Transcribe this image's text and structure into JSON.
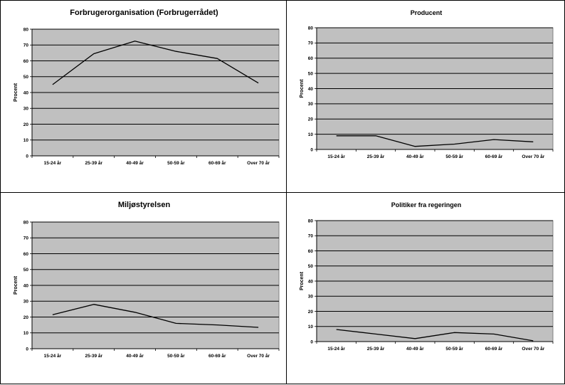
{
  "chart_data": [
    {
      "type": "line",
      "title": "Forbrugerorganisation (Forbrugerrådet)",
      "ylabel": "Procent",
      "xlabel": "",
      "categories": [
        "15-24 år",
        "25-39 år",
        "40-49 år",
        "50-59 år",
        "60-69 år",
        "Over 70 år"
      ],
      "values": [
        45,
        64.5,
        72.5,
        66,
        61.5,
        46
      ],
      "ylim": [
        0,
        80
      ],
      "yticks": [
        "0",
        "10",
        "20",
        "30",
        "40",
        "50",
        "60",
        "70",
        "80"
      ],
      "grid": true,
      "plot_color": "#c0c0c0",
      "line_color": "#000000"
    },
    {
      "type": "line",
      "title": "Producent",
      "ylabel": "Procent",
      "xlabel": "",
      "categories": [
        "15-24 år",
        "25-39 år",
        "40-49 år",
        "50-59 år",
        "60-69 år",
        "Over 70 år"
      ],
      "values": [
        9,
        9,
        2,
        3.5,
        6.5,
        5
      ],
      "ylim": [
        0,
        80
      ],
      "yticks": [
        "0",
        "10",
        "20",
        "30",
        "40",
        "50",
        "60",
        "70",
        "80"
      ],
      "grid": true,
      "plot_color": "#c0c0c0",
      "line_color": "#000000"
    },
    {
      "type": "line",
      "title": "Miljøstyrelsen",
      "ylabel": "Procent",
      "xlabel": "",
      "categories": [
        "15-24 år",
        "25-39 år",
        "40-49 år",
        "50-59 år",
        "60-69 år",
        "Over 70 år"
      ],
      "values": [
        21.5,
        28,
        23,
        16,
        15,
        13.5
      ],
      "ylim": [
        0,
        80
      ],
      "yticks": [
        "0",
        "10",
        "20",
        "30",
        "40",
        "50",
        "60",
        "70",
        "80"
      ],
      "grid": true,
      "plot_color": "#c0c0c0",
      "line_color": "#000000"
    },
    {
      "type": "line",
      "title": "Politiker fra regeringen",
      "ylabel": "Procent",
      "xlabel": "",
      "categories": [
        "15-24 år",
        "25-39 år",
        "40-49 år",
        "50-59 år",
        "60-69 år",
        "Over 70 år"
      ],
      "values": [
        8,
        5,
        2,
        6,
        5,
        0.5
      ],
      "ylim": [
        0,
        80
      ],
      "yticks": [
        "0",
        "10",
        "20",
        "30",
        "40",
        "50",
        "60",
        "70",
        "80"
      ],
      "grid": true,
      "plot_color": "#c0c0c0",
      "line_color": "#000000"
    }
  ]
}
